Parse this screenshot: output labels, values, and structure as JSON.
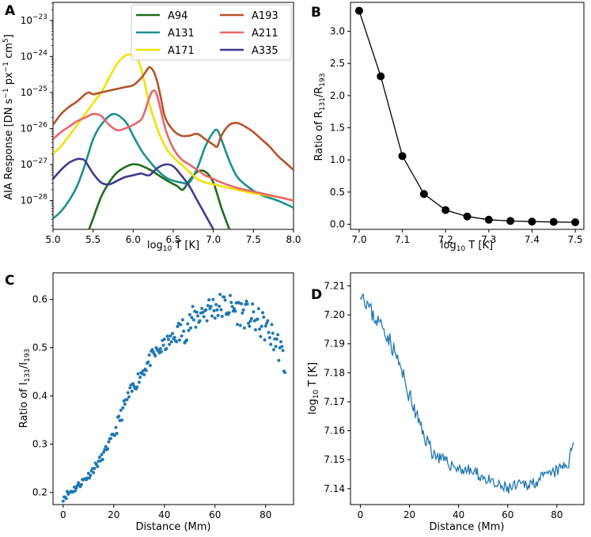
{
  "chart_data": [
    {
      "panel": "A",
      "type": "line",
      "xlabel": "log10 T [K]",
      "ylabel": "AIA Response [DN s^-1 px^-1 cm^5]",
      "yscale": "log",
      "xlim": [
        5.0,
        8.0
      ],
      "ylim_log10": [
        -28.8,
        -22.5
      ],
      "xticks": [
        "5.0",
        "5.5",
        "6.0",
        "6.5",
        "7.0",
        "7.5",
        "8.0"
      ],
      "yticks": [
        -28,
        -27,
        -26,
        -25,
        -24,
        -23
      ],
      "ytick_base": "10",
      "legend_location": "top-right",
      "series": [
        {
          "name": "A94",
          "color": "#1e6b1e",
          "x": [
            5.45,
            5.5,
            5.6,
            5.7,
            5.8,
            5.95,
            6.05,
            6.15,
            6.25,
            6.35,
            6.45,
            6.55,
            6.62,
            6.7,
            6.8,
            6.9,
            7.0,
            7.1,
            7.2
          ],
          "y": [
            -28.8,
            -28.5,
            -27.9,
            -27.5,
            -27.22,
            -27.02,
            -27.0,
            -27.08,
            -27.2,
            -27.35,
            -27.48,
            -27.6,
            -27.7,
            -27.45,
            -27.2,
            -27.2,
            -27.5,
            -28.2,
            -28.8
          ]
        },
        {
          "name": "A131",
          "color": "#1a8f8f",
          "x": [
            5.0,
            5.1,
            5.2,
            5.3,
            5.4,
            5.5,
            5.6,
            5.75,
            5.9,
            6.0,
            6.1,
            6.2,
            6.3,
            6.4,
            6.5,
            6.6,
            6.7,
            6.8,
            6.9,
            7.0,
            7.05,
            7.1,
            7.2,
            7.3,
            7.45,
            7.6,
            7.8,
            8.0
          ],
          "y": [
            -28.5,
            -28.3,
            -28.0,
            -27.6,
            -27.0,
            -26.3,
            -25.9,
            -25.6,
            -25.8,
            -26.2,
            -26.6,
            -26.9,
            -27.15,
            -27.35,
            -27.45,
            -27.5,
            -27.5,
            -27.1,
            -26.5,
            -26.1,
            -26.05,
            -26.3,
            -26.9,
            -27.35,
            -27.65,
            -27.85,
            -28.0,
            -28.2
          ]
        },
        {
          "name": "A171",
          "color": "#f5e000",
          "x": [
            5.0,
            5.1,
            5.2,
            5.3,
            5.4,
            5.5,
            5.6,
            5.7,
            5.8,
            5.9,
            5.95,
            6.0,
            6.05,
            6.1,
            6.15,
            6.2,
            6.3,
            6.4,
            6.5,
            6.6,
            6.7,
            6.8,
            6.9,
            7.0,
            7.2,
            7.5,
            7.8,
            8.0
          ],
          "y": [
            -26.7,
            -26.5,
            -26.2,
            -25.9,
            -25.6,
            -25.3,
            -25.0,
            -24.6,
            -24.2,
            -23.98,
            -23.95,
            -23.95,
            -24.05,
            -24.35,
            -24.8,
            -25.3,
            -26.0,
            -26.5,
            -26.8,
            -27.0,
            -27.2,
            -27.4,
            -27.5,
            -27.55,
            -27.65,
            -27.8,
            -27.9,
            -28.0
          ]
        },
        {
          "name": "A193",
          "color": "#b5532a",
          "x": [
            5.0,
            5.1,
            5.2,
            5.3,
            5.4,
            5.45,
            5.5,
            5.6,
            5.7,
            5.8,
            5.9,
            6.0,
            6.1,
            6.15,
            6.2,
            6.25,
            6.3,
            6.35,
            6.4,
            6.5,
            6.6,
            6.7,
            6.8,
            6.9,
            7.0,
            7.05,
            7.1,
            7.2,
            7.3,
            7.4,
            7.5,
            7.6,
            7.7,
            7.8,
            7.9,
            8.0
          ],
          "y": [
            -25.9,
            -25.6,
            -25.4,
            -25.25,
            -25.05,
            -25.0,
            -25.05,
            -25.0,
            -24.95,
            -24.9,
            -24.85,
            -24.8,
            -24.6,
            -24.45,
            -24.3,
            -24.4,
            -24.7,
            -25.2,
            -25.7,
            -26.05,
            -26.2,
            -26.2,
            -26.15,
            -26.3,
            -26.45,
            -26.5,
            -26.2,
            -25.9,
            -25.85,
            -25.95,
            -26.1,
            -26.3,
            -26.5,
            -26.75,
            -26.95,
            -27.15
          ]
        },
        {
          "name": "A211",
          "color": "#e8666a",
          "x": [
            5.0,
            5.1,
            5.2,
            5.3,
            5.4,
            5.5,
            5.6,
            5.7,
            5.8,
            5.9,
            6.0,
            6.1,
            6.15,
            6.2,
            6.25,
            6.3,
            6.4,
            6.5,
            6.6,
            6.7,
            6.8,
            6.9,
            7.0,
            7.1,
            7.3,
            7.5,
            7.7,
            8.0
          ],
          "y": [
            -26.3,
            -26.1,
            -25.95,
            -25.8,
            -25.7,
            -25.6,
            -25.65,
            -25.9,
            -26.05,
            -26.0,
            -25.9,
            -25.75,
            -25.5,
            -25.15,
            -24.95,
            -25.1,
            -26.0,
            -26.55,
            -26.85,
            -27.0,
            -27.15,
            -27.3,
            -27.4,
            -27.5,
            -27.65,
            -27.75,
            -27.85,
            -28.0
          ]
        },
        {
          "name": "A335",
          "color": "#3d3a8f",
          "x": [
            5.0,
            5.1,
            5.2,
            5.3,
            5.35,
            5.4,
            5.5,
            5.6,
            5.7,
            5.8,
            5.9,
            6.0,
            6.1,
            6.2,
            6.3,
            6.4,
            6.5,
            6.6,
            6.7,
            6.8,
            6.9,
            7.0
          ],
          "y": [
            -27.4,
            -27.15,
            -26.95,
            -26.85,
            -26.85,
            -26.9,
            -27.25,
            -27.5,
            -27.55,
            -27.45,
            -27.35,
            -27.3,
            -27.25,
            -27.3,
            -27.1,
            -27.0,
            -27.05,
            -27.3,
            -27.6,
            -28.0,
            -28.4,
            -28.8
          ]
        }
      ]
    },
    {
      "panel": "B",
      "type": "line",
      "xlabel": "log10 T [K]",
      "ylabel": "Ratio of R131/R193",
      "xlim": [
        6.98,
        7.52
      ],
      "ylim": [
        -0.08,
        3.45
      ],
      "xticks": [
        "7.0",
        "7.1",
        "7.2",
        "7.3",
        "7.4",
        "7.5"
      ],
      "yticks": [
        "0.0",
        "0.5",
        "1.0",
        "1.5",
        "2.0",
        "2.5",
        "3.0"
      ],
      "x": [
        7.0,
        7.05,
        7.1,
        7.15,
        7.2,
        7.25,
        7.3,
        7.35,
        7.4,
        7.45,
        7.5
      ],
      "y": [
        3.32,
        2.3,
        1.06,
        0.47,
        0.22,
        0.12,
        0.07,
        0.05,
        0.04,
        0.035,
        0.03
      ],
      "color": "#000000"
    },
    {
      "panel": "C",
      "type": "scatter",
      "xlabel": "Distance (Mm)",
      "ylabel": "Ratio of I131/I193",
      "xlim": [
        -4,
        91
      ],
      "ylim": [
        0.175,
        0.655
      ],
      "xticks": [
        "0",
        "20",
        "40",
        "60",
        "80"
      ],
      "yticks": [
        "0.2",
        "0.3",
        "0.4",
        "0.5",
        "0.6"
      ],
      "trend_x": [
        0,
        5,
        10,
        15,
        20,
        25,
        30,
        35,
        40,
        45,
        50,
        55,
        60,
        65,
        70,
        75,
        80,
        85,
        88
      ],
      "trend_y": [
        0.19,
        0.21,
        0.235,
        0.27,
        0.32,
        0.39,
        0.44,
        0.48,
        0.505,
        0.525,
        0.55,
        0.575,
        0.585,
        0.585,
        0.575,
        0.56,
        0.54,
        0.505,
        0.46
      ],
      "color": "#1f77b4"
    },
    {
      "panel": "D",
      "type": "line",
      "xlabel": "Distance (Mm)",
      "ylabel": "log10 T [K]",
      "xlim": [
        -4,
        91
      ],
      "ylim": [
        7.1345,
        7.2145
      ],
      "xticks": [
        "0",
        "20",
        "40",
        "60",
        "80"
      ],
      "yticks": [
        "7.14",
        "7.15",
        "7.16",
        "7.17",
        "7.18",
        "7.19",
        "7.20",
        "7.21"
      ],
      "trend_x": [
        0,
        5,
        10,
        15,
        20,
        25,
        30,
        35,
        40,
        45,
        50,
        55,
        60,
        65,
        70,
        75,
        80,
        85,
        87
      ],
      "trend_y": [
        7.209,
        7.2,
        7.195,
        7.185,
        7.172,
        7.16,
        7.152,
        7.149,
        7.147,
        7.146,
        7.144,
        7.141,
        7.14,
        7.141,
        7.142,
        7.144,
        7.146,
        7.149,
        7.158
      ],
      "color": "#1f77b4"
    }
  ]
}
